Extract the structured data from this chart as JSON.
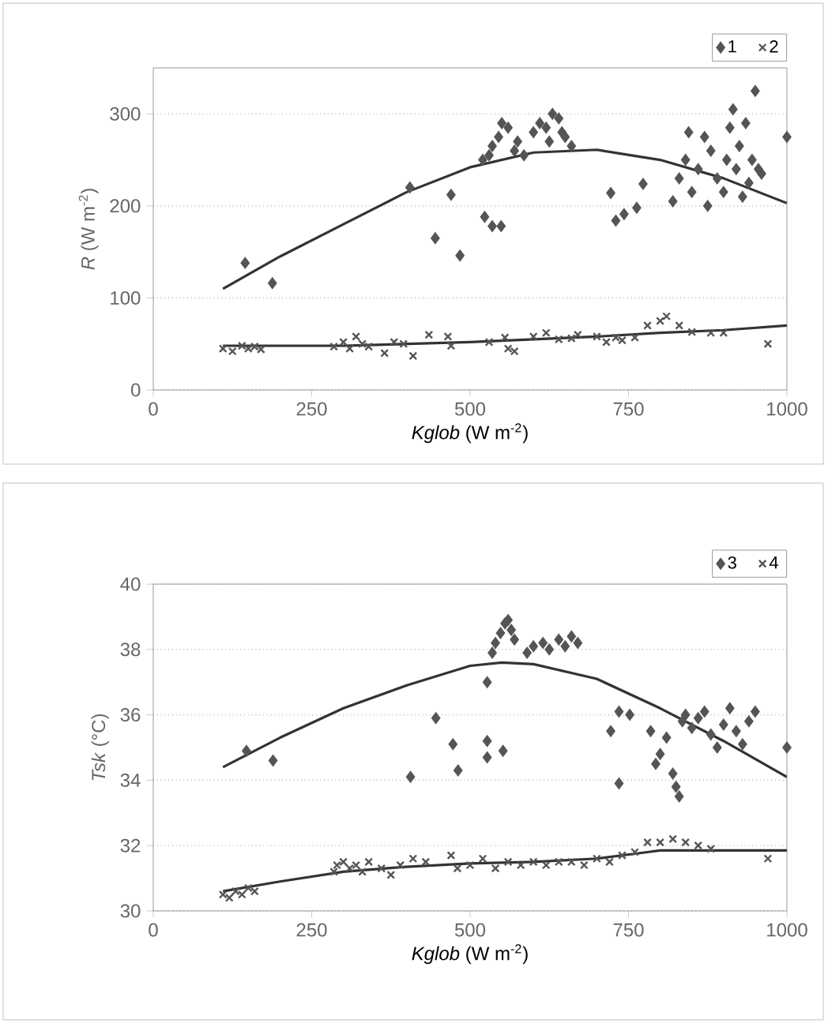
{
  "chart_data": [
    {
      "type": "scatter",
      "xlabel": "*Kglob* (W m$^{-2}$)",
      "ylabel": "*R* (W m$^{-2}$)",
      "xlim": [
        0,
        1000
      ],
      "ylim": [
        0,
        350
      ],
      "xticks": [
        0,
        250,
        500,
        750,
        1000
      ],
      "yticks": [
        0,
        100,
        200,
        300
      ],
      "grid": "y",
      "legend": "top right",
      "series": [
        {
          "name": "1",
          "color": "#555555",
          "marker": "diamond",
          "x": [
            145,
            188,
            405,
            445,
            470,
            484,
            523,
            535,
            549,
            520,
            535,
            545,
            560,
            570,
            585,
            600,
            610,
            620,
            630,
            640,
            650,
            660,
            530,
            550,
            575,
            625,
            645,
            722,
            730,
            743,
            763,
            773,
            820,
            830,
            840,
            845,
            850,
            860,
            870,
            875,
            880,
            890,
            900,
            905,
            910,
            915,
            920,
            925,
            930,
            935,
            940,
            945,
            950,
            955,
            960,
            1000
          ],
          "values": [
            138,
            116,
            220,
            165,
            212,
            146,
            188,
            178,
            178,
            250,
            265,
            275,
            285,
            260,
            255,
            280,
            290,
            285,
            300,
            295,
            275,
            265,
            255,
            290,
            270,
            270,
            280,
            214,
            184,
            191,
            198,
            224,
            205,
            230,
            250,
            280,
            215,
            240,
            275,
            200,
            260,
            230,
            215,
            250,
            285,
            305,
            240,
            265,
            210,
            290,
            225,
            250,
            325,
            240,
            235,
            275
          ]
        },
        {
          "name": "2",
          "color": "#555555",
          "marker": "cross",
          "x": [
            110,
            125,
            140,
            150,
            160,
            170,
            285,
            300,
            310,
            320,
            330,
            340,
            365,
            380,
            395,
            410,
            435,
            465,
            470,
            530,
            555,
            560,
            570,
            600,
            620,
            640,
            660,
            670,
            700,
            715,
            730,
            740,
            760,
            780,
            800,
            810,
            830,
            850,
            880,
            900,
            970
          ],
          "values": [
            45,
            42,
            48,
            45,
            47,
            44,
            47,
            52,
            45,
            58,
            50,
            47,
            40,
            52,
            50,
            37,
            60,
            58,
            48,
            52,
            57,
            45,
            42,
            58,
            62,
            55,
            56,
            60,
            58,
            52,
            57,
            54,
            57,
            70,
            75,
            80,
            70,
            63,
            62,
            62,
            50
          ]
        },
        {
          "type": "line",
          "color": "#333333",
          "marker": "none",
          "x": [
            110,
            200,
            300,
            400,
            500,
            600,
            700,
            800,
            900,
            1000
          ],
          "values": [
            110,
            145,
            180,
            215,
            242,
            258,
            261,
            250,
            230,
            203
          ]
        },
        {
          "type": "line",
          "color": "#333333",
          "marker": "none",
          "x": [
            110,
            300,
            500,
            700,
            800,
            900,
            1000
          ],
          "values": [
            48,
            48,
            52,
            58,
            62,
            65,
            70
          ]
        }
      ]
    },
    {
      "type": "scatter",
      "xlabel": "*Kglob* (W m$^{-2}$)",
      "ylabel": "*Tsk* (°C)",
      "xlim": [
        0,
        1000
      ],
      "ylim": [
        30,
        40
      ],
      "xticks": [
        0,
        250,
        500,
        750,
        1000
      ],
      "yticks": [
        30,
        32,
        34,
        36,
        38,
        40
      ],
      "grid": "y",
      "legend": "top right",
      "series": [
        {
          "name": "3",
          "color": "#555555",
          "marker": "diamond",
          "x": [
            147,
            189,
            406,
            446,
            473,
            481,
            527,
            527,
            552,
            527,
            540,
            548,
            555,
            560,
            565,
            570,
            535,
            590,
            600,
            615,
            625,
            640,
            650,
            660,
            670,
            722,
            735,
            752,
            735,
            785,
            793,
            800,
            810,
            820,
            825,
            830,
            835,
            840,
            850,
            860,
            870,
            880,
            890,
            900,
            910,
            920,
            930,
            940,
            950,
            1000
          ],
          "values": [
            34.9,
            34.6,
            34.1,
            35.9,
            35.1,
            34.3,
            34.7,
            35.2,
            34.9,
            37.0,
            38.2,
            38.5,
            38.8,
            38.9,
            38.6,
            38.3,
            37.9,
            37.9,
            38.1,
            38.2,
            38.0,
            38.3,
            38.1,
            38.4,
            38.2,
            35.5,
            36.1,
            36.0,
            33.9,
            35.5,
            34.5,
            34.8,
            35.3,
            34.2,
            33.8,
            33.5,
            35.8,
            36.0,
            35.6,
            35.9,
            36.1,
            35.4,
            35.0,
            35.7,
            36.2,
            35.5,
            35.1,
            35.8,
            36.1,
            35.0
          ]
        },
        {
          "name": "4",
          "color": "#555555",
          "marker": "cross",
          "x": [
            110,
            120,
            130,
            140,
            150,
            160,
            285,
            290,
            300,
            310,
            320,
            330,
            340,
            360,
            375,
            390,
            410,
            430,
            470,
            480,
            500,
            520,
            540,
            560,
            580,
            600,
            620,
            640,
            660,
            680,
            700,
            720,
            740,
            760,
            780,
            800,
            820,
            840,
            860,
            880,
            970
          ],
          "values": [
            30.5,
            30.4,
            30.6,
            30.5,
            30.7,
            30.6,
            31.2,
            31.4,
            31.5,
            31.3,
            31.4,
            31.2,
            31.5,
            31.3,
            31.1,
            31.4,
            31.6,
            31.5,
            31.7,
            31.3,
            31.4,
            31.6,
            31.3,
            31.5,
            31.4,
            31.5,
            31.4,
            31.5,
            31.5,
            31.4,
            31.6,
            31.5,
            31.7,
            31.8,
            32.1,
            32.1,
            32.2,
            32.1,
            32.0,
            31.9,
            31.6
          ]
        },
        {
          "type": "line",
          "color": "#333333",
          "marker": "none",
          "x": [
            110,
            200,
            300,
            400,
            500,
            550,
            600,
            700,
            800,
            900,
            1000
          ],
          "values": [
            34.4,
            35.3,
            36.2,
            36.9,
            37.5,
            37.6,
            37.55,
            37.1,
            36.2,
            35.2,
            34.1
          ]
        },
        {
          "type": "line",
          "color": "#333333",
          "marker": "none",
          "x": [
            110,
            200,
            300,
            400,
            500,
            600,
            700,
            780,
            800,
            1000
          ],
          "values": [
            30.6,
            30.9,
            31.2,
            31.35,
            31.45,
            31.5,
            31.6,
            31.8,
            31.85,
            31.85
          ]
        }
      ]
    }
  ]
}
